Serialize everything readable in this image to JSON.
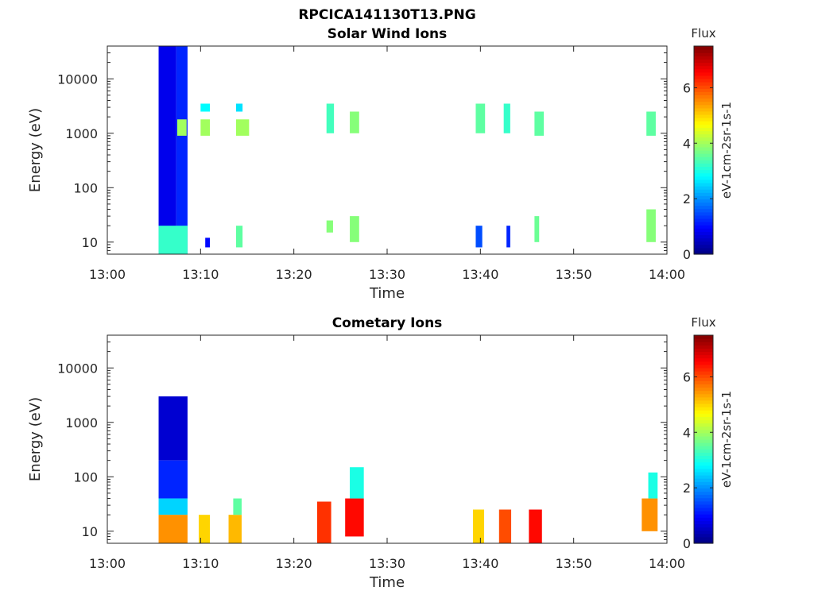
{
  "figure_title": "RPCICA141130T13.PNG",
  "chart_data": [
    {
      "type": "heatmap",
      "title": "Solar Wind Ions",
      "xlabel": "Time",
      "ylabel": "Energy (eV)",
      "x_unit": "minutes after 13:00",
      "xlim": [
        0,
        60
      ],
      "xticks": [
        0,
        10,
        20,
        30,
        40,
        50,
        60
      ],
      "xtick_labels": [
        "13:00",
        "13:10",
        "13:20",
        "13:30",
        "13:40",
        "13:50",
        "14:00"
      ],
      "yscale": "log",
      "ylim": [
        6,
        40000
      ],
      "yticks": [
        10,
        100,
        1000,
        10000
      ],
      "ytick_labels": [
        "10",
        "100",
        "1000",
        "10000"
      ],
      "colorbar": {
        "title": "Flux",
        "label": "eV-1cm-2sr-1s-1",
        "range": [
          0,
          7.5
        ],
        "ticks": [
          0,
          2,
          4,
          6
        ],
        "tick_labels": [
          "0",
          "2",
          "4",
          "6"
        ],
        "colormap": "jet"
      },
      "cells": [
        {
          "t": [
            5.5,
            7.4
          ],
          "e": [
            6,
            40000
          ],
          "flux": 0.8
        },
        {
          "t": [
            7.4,
            8.6
          ],
          "e": [
            6,
            40000
          ],
          "flux": 1.2
        },
        {
          "t": [
            7.5,
            8.5
          ],
          "e": [
            900,
            1800
          ],
          "flux": 4.0
        },
        {
          "t": [
            5.5,
            8.6
          ],
          "e": [
            6,
            20
          ],
          "flux": 3.2
        },
        {
          "t": [
            10.0,
            11.0
          ],
          "e": [
            900,
            1800
          ],
          "flux": 4.0
        },
        {
          "t": [
            10.0,
            11.0
          ],
          "e": [
            2500,
            3500
          ],
          "flux": 2.8
        },
        {
          "t": [
            10.5,
            11.0
          ],
          "e": [
            8,
            12
          ],
          "flux": 1.0
        },
        {
          "t": [
            13.8,
            15.2
          ],
          "e": [
            900,
            1800
          ],
          "flux": 4.0
        },
        {
          "t": [
            13.8,
            14.5
          ],
          "e": [
            2500,
            3500
          ],
          "flux": 2.6
        },
        {
          "t": [
            13.8,
            14.5
          ],
          "e": [
            8,
            20
          ],
          "flux": 3.5
        },
        {
          "t": [
            23.5,
            24.3
          ],
          "e": [
            1000,
            3500
          ],
          "flux": 3.3
        },
        {
          "t": [
            23.5,
            24.2
          ],
          "e": [
            15,
            25
          ],
          "flux": 3.8
        },
        {
          "t": [
            26.0,
            27.0
          ],
          "e": [
            1000,
            2500
          ],
          "flux": 3.8
        },
        {
          "t": [
            26.0,
            27.0
          ],
          "e": [
            10,
            30
          ],
          "flux": 3.8
        },
        {
          "t": [
            39.5,
            40.5
          ],
          "e": [
            1000,
            3500
          ],
          "flux": 3.5
        },
        {
          "t": [
            39.5,
            40.2
          ],
          "e": [
            8,
            20
          ],
          "flux": 1.5
        },
        {
          "t": [
            42.5,
            43.2
          ],
          "e": [
            1000,
            3500
          ],
          "flux": 3.2
        },
        {
          "t": [
            42.8,
            43.2
          ],
          "e": [
            8,
            20
          ],
          "flux": 1.2
        },
        {
          "t": [
            45.8,
            46.8
          ],
          "e": [
            900,
            2500
          ],
          "flux": 3.5
        },
        {
          "t": [
            45.8,
            46.3
          ],
          "e": [
            10,
            30
          ],
          "flux": 3.6
        },
        {
          "t": [
            57.8,
            58.8
          ],
          "e": [
            900,
            2500
          ],
          "flux": 3.5
        },
        {
          "t": [
            57.8,
            58.8
          ],
          "e": [
            10,
            40
          ],
          "flux": 3.8
        }
      ]
    },
    {
      "type": "heatmap",
      "title": "Cometary Ions",
      "xlabel": "Time",
      "ylabel": "Energy (eV)",
      "x_unit": "minutes after 13:00",
      "xlim": [
        0,
        60
      ],
      "xticks": [
        0,
        10,
        20,
        30,
        40,
        50,
        60
      ],
      "xtick_labels": [
        "13:00",
        "13:10",
        "13:20",
        "13:30",
        "13:40",
        "13:50",
        "14:00"
      ],
      "yscale": "log",
      "ylim": [
        6,
        40000
      ],
      "yticks": [
        10,
        100,
        1000,
        10000
      ],
      "ytick_labels": [
        "10",
        "100",
        "1000",
        "10000"
      ],
      "colorbar": {
        "title": "Flux",
        "label": "eV-1cm-2sr-1s-1",
        "range": [
          0,
          7.5
        ],
        "ticks": [
          0,
          2,
          4,
          6
        ],
        "tick_labels": [
          "0",
          "2",
          "4",
          "6"
        ],
        "colormap": "jet"
      },
      "cells": [
        {
          "t": [
            5.5,
            8.6
          ],
          "e": [
            200,
            3000
          ],
          "flux": 0.6
        },
        {
          "t": [
            5.5,
            8.6
          ],
          "e": [
            40,
            200
          ],
          "flux": 1.2
        },
        {
          "t": [
            5.5,
            8.6
          ],
          "e": [
            20,
            40
          ],
          "flux": 2.5
        },
        {
          "t": [
            5.5,
            8.6
          ],
          "e": [
            6,
            20
          ],
          "flux": 5.5
        },
        {
          "t": [
            9.8,
            11.0
          ],
          "e": [
            6,
            20
          ],
          "flux": 5.0
        },
        {
          "t": [
            13.0,
            14.4
          ],
          "e": [
            6,
            20
          ],
          "flux": 5.2
        },
        {
          "t": [
            13.5,
            14.4
          ],
          "e": [
            20,
            40
          ],
          "flux": 3.5
        },
        {
          "t": [
            22.5,
            24.0
          ],
          "e": [
            6,
            35
          ],
          "flux": 6.2
        },
        {
          "t": [
            25.5,
            27.5
          ],
          "e": [
            8,
            40
          ],
          "flux": 6.5
        },
        {
          "t": [
            26.0,
            27.5
          ],
          "e": [
            40,
            150
          ],
          "flux": 3.0
        },
        {
          "t": [
            39.2,
            40.4
          ],
          "e": [
            6,
            25
          ],
          "flux": 5.0
        },
        {
          "t": [
            42.0,
            43.3
          ],
          "e": [
            6,
            25
          ],
          "flux": 6.0
        },
        {
          "t": [
            45.2,
            46.6
          ],
          "e": [
            6,
            25
          ],
          "flux": 6.5
        },
        {
          "t": [
            57.3,
            59.0
          ],
          "e": [
            10,
            40
          ],
          "flux": 5.5
        },
        {
          "t": [
            58.0,
            59.0
          ],
          "e": [
            40,
            120
          ],
          "flux": 3.0
        }
      ]
    }
  ]
}
